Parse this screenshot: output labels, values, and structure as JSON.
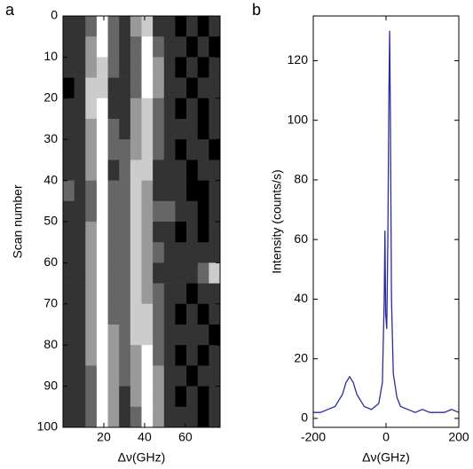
{
  "chart_data": [
    {
      "type": "heatmap",
      "panel_label": "a",
      "xlabel": "Δν(GHz)",
      "ylabel": "Scan number",
      "colormap": "gray",
      "x_bins": [
        0,
        5.5,
        11,
        16.5,
        22,
        27.5,
        33,
        38.5,
        44,
        49.5,
        55,
        60.5,
        66,
        71.5,
        77
      ],
      "y_bins": [
        0,
        5,
        10,
        15,
        20,
        25,
        30,
        35,
        40,
        45,
        50,
        55,
        60,
        65,
        70,
        75,
        80,
        85,
        90,
        95,
        100
      ],
      "values": [
        [
          1,
          1,
          2,
          5,
          2,
          1,
          3,
          4,
          1,
          1,
          0,
          1,
          0,
          1
        ],
        [
          1,
          1,
          3,
          5,
          2,
          1,
          2,
          5,
          2,
          1,
          1,
          0,
          1,
          0
        ],
        [
          1,
          1,
          3,
          4,
          2,
          1,
          2,
          5,
          3,
          1,
          0,
          1,
          0,
          1
        ],
        [
          0,
          1,
          4,
          4,
          1,
          1,
          2,
          5,
          3,
          1,
          1,
          0,
          1,
          1
        ],
        [
          1,
          1,
          4,
          5,
          1,
          1,
          3,
          4,
          2,
          1,
          0,
          1,
          0,
          1
        ],
        [
          1,
          1,
          3,
          5,
          2,
          1,
          3,
          4,
          2,
          1,
          1,
          1,
          0,
          1
        ],
        [
          1,
          1,
          3,
          5,
          2,
          2,
          3,
          4,
          2,
          1,
          0,
          1,
          1,
          0
        ],
        [
          1,
          1,
          3,
          5,
          1,
          2,
          4,
          4,
          1,
          1,
          1,
          0,
          1,
          1
        ],
        [
          2,
          1,
          2,
          5,
          2,
          2,
          4,
          3,
          1,
          1,
          1,
          0,
          0,
          1
        ],
        [
          1,
          1,
          2,
          5,
          2,
          2,
          4,
          3,
          2,
          2,
          1,
          1,
          0,
          1
        ],
        [
          1,
          1,
          3,
          5,
          2,
          2,
          4,
          3,
          1,
          1,
          0,
          1,
          0,
          1
        ],
        [
          1,
          1,
          3,
          5,
          2,
          2,
          4,
          3,
          2,
          1,
          1,
          1,
          1,
          1
        ],
        [
          1,
          1,
          3,
          5,
          2,
          2,
          4,
          3,
          1,
          1,
          1,
          1,
          2,
          4
        ],
        [
          1,
          1,
          3,
          5,
          2,
          2,
          4,
          3,
          2,
          1,
          1,
          0,
          1,
          1
        ],
        [
          1,
          1,
          3,
          5,
          2,
          2,
          4,
          4,
          2,
          1,
          0,
          1,
          0,
          1
        ],
        [
          1,
          1,
          3,
          5,
          3,
          2,
          4,
          4,
          2,
          1,
          1,
          1,
          1,
          0
        ],
        [
          1,
          1,
          3,
          5,
          3,
          2,
          3,
          5,
          2,
          1,
          0,
          1,
          0,
          1
        ],
        [
          1,
          1,
          2,
          5,
          3,
          2,
          3,
          5,
          3,
          1,
          1,
          0,
          1,
          1
        ],
        [
          1,
          1,
          2,
          5,
          3,
          1,
          3,
          5,
          3,
          1,
          0,
          1,
          0,
          1
        ],
        [
          1,
          1,
          2,
          5,
          3,
          1,
          2,
          5,
          3,
          1,
          1,
          1,
          0,
          1
        ]
      ],
      "xlim": [
        0,
        77
      ],
      "xticks": [
        20,
        40,
        60
      ],
      "ylim": [
        0,
        100
      ],
      "yticks": [
        0,
        10,
        20,
        30,
        40,
        50,
        60,
        70,
        80,
        90,
        100
      ]
    },
    {
      "type": "line",
      "panel_label": "b",
      "xlabel": "Δν(GHz)",
      "ylabel": "Intensity (counts/s)",
      "x": [
        -200,
        -180,
        -160,
        -140,
        -120,
        -110,
        -100,
        -90,
        -80,
        -60,
        -40,
        -20,
        -10,
        -5,
        -3,
        -1,
        2,
        5,
        8,
        10,
        12,
        15,
        20,
        30,
        40,
        60,
        80,
        100,
        120,
        140,
        160,
        180,
        200
      ],
      "series": [
        {
          "color": "#2b2b9c",
          "values": [
            2,
            2,
            3,
            4,
            8,
            12,
            14,
            12,
            8,
            4,
            3,
            5,
            12,
            40,
            63,
            35,
            30,
            60,
            110,
            130,
            100,
            40,
            15,
            7,
            4,
            3,
            2,
            3,
            2,
            2,
            2,
            3,
            2
          ]
        }
      ],
      "xlim": [
        -200,
        200
      ],
      "xticks": [
        -200,
        0,
        200
      ],
      "ylim": [
        -3,
        135
      ],
      "yticks": [
        0,
        20,
        40,
        60,
        80,
        100,
        120
      ]
    }
  ]
}
